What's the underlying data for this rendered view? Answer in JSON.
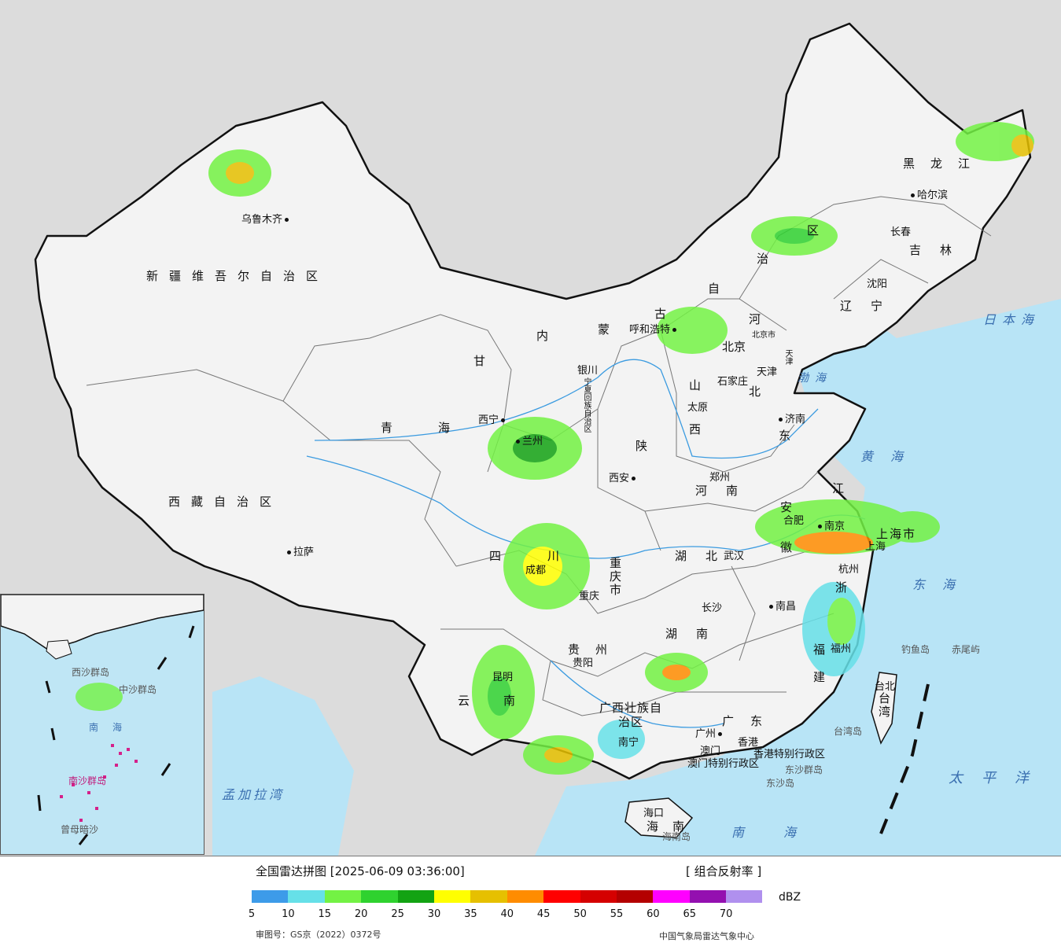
{
  "map": {
    "provinces": [
      "新疆维吾尔自治区",
      "西藏自治区",
      "青海",
      "甘",
      "内",
      "蒙",
      "古",
      "自",
      "治",
      "区",
      "黑龙江",
      "吉林",
      "辽宁",
      "河",
      "北",
      "山",
      "西",
      "东",
      "陕",
      "河南",
      "湖北",
      "四",
      "川",
      "重庆市",
      "湖南",
      "贵州",
      "云",
      "南",
      "广西壮族自治区",
      "广",
      "东",
      "江",
      "安",
      "徽",
      "浙",
      "福",
      "建",
      "上海市",
      "台湾",
      "海南",
      "宁夏回族自治区",
      "香港特别行政区",
      "澳门特别行政区",
      "北京市",
      "天津"
    ],
    "cities": [
      "乌鲁木齐",
      "拉萨",
      "西宁",
      "兰州",
      "银川",
      "呼和浩特",
      "北京",
      "天津",
      "石家庄",
      "太原",
      "济南",
      "郑州",
      "西安",
      "成都",
      "重庆",
      "武汉",
      "南京",
      "合肥",
      "上海",
      "杭州",
      "南昌",
      "长沙",
      "贵阳",
      "昆明",
      "南宁",
      "广州",
      "香港",
      "澳门",
      "福州",
      "台北",
      "海口",
      "哈尔滨",
      "长春",
      "沈阳"
    ],
    "seas": [
      "日本海",
      "渤海",
      "黄海",
      "东海",
      "太平洋",
      "南海",
      "孟加拉湾"
    ],
    "islands": [
      "钓鱼岛",
      "赤尾屿",
      "台湾岛",
      "东沙群岛",
      "东沙岛",
      "海南岛"
    ],
    "inset_labels": [
      "南海",
      "南沙群岛",
      "中沙群岛",
      "西沙群岛",
      "曾母暗沙"
    ]
  },
  "footer": {
    "title": "全国雷达拼图 [2025-06-09 03:36:00]",
    "product": "[ 组合反射率 ]",
    "unit": "dBZ",
    "review_no": "审图号：GS京（2022）0372号",
    "organization": "中国气象局雷达气象中心"
  },
  "legend": {
    "colors": [
      "#3d9be9",
      "#66e0e8",
      "#73f244",
      "#2fd22f",
      "#13a313",
      "#ffff00",
      "#e6c000",
      "#ff8c00",
      "#ff0000",
      "#d50000",
      "#b40000",
      "#ff00ff",
      "#9410b0",
      "#b090ee"
    ],
    "ticks": [
      "5",
      "10",
      "15",
      "20",
      "25",
      "30",
      "35",
      "40",
      "45",
      "50",
      "55",
      "60",
      "65",
      "70"
    ]
  }
}
